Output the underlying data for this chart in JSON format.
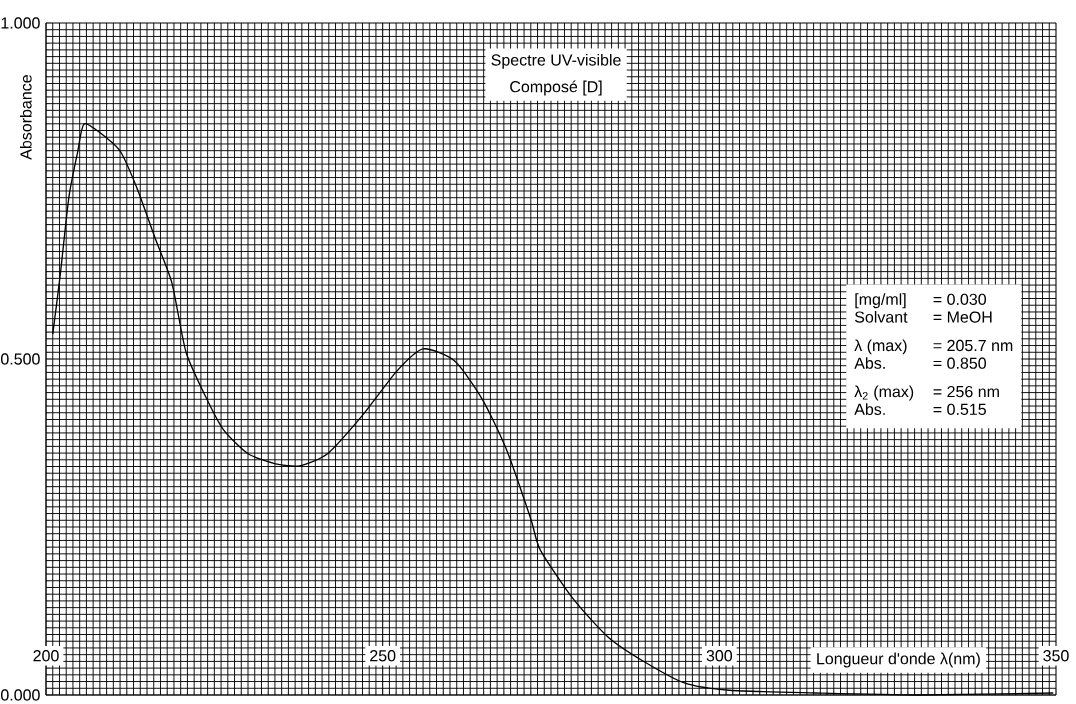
{
  "chart_data": {
    "type": "line",
    "title": "Spectre UV-visible",
    "subtitle": "Composé [D]",
    "xlabel": "Longueur d'onde λ(nm)",
    "ylabel": "Absorbance",
    "x": [
      201.0,
      202.1,
      203.4,
      204.7,
      205.7,
      209.0,
      211.1,
      213.6,
      216.2,
      218.7,
      220.8,
      223.9,
      226.4,
      230.0,
      234.1,
      237.7,
      241.8,
      246.9,
      252.1,
      256,
      260.7,
      264.8,
      268.4,
      272.0,
      273.4,
      278.3,
      283.5,
      288.6,
      294.8,
      301.5,
      314.2,
      329.5,
      349.6
    ],
    "values": [
      0.537,
      0.624,
      0.741,
      0.808,
      0.85,
      0.829,
      0.808,
      0.752,
      0.68,
      0.613,
      0.51,
      0.44,
      0.394,
      0.359,
      0.344,
      0.341,
      0.359,
      0.415,
      0.482,
      0.515,
      0.497,
      0.44,
      0.365,
      0.262,
      0.216,
      0.143,
      0.086,
      0.051,
      0.018,
      0.007,
      0.003,
      0.0,
      0.003
    ],
    "color": "#000000",
    "xlim": [
      200,
      350
    ],
    "ylim": [
      0,
      1
    ],
    "xticks": [
      200,
      250,
      300,
      350
    ],
    "yticks": [
      {
        "value": 0,
        "label": "0.000"
      },
      {
        "value": 0.5,
        "label": "0.500"
      },
      {
        "value": 1,
        "label": "1.000"
      }
    ],
    "grid": true,
    "annotations": [
      "[mg/ml]",
      "= 0.030",
      "Solvant",
      "= MeOH",
      "λ (max)",
      "= 205.7 nm",
      "Abs.",
      "= 0.850",
      "λ$_{2}$ (max)",
      "= 256 nm",
      "Abs.",
      "= 0.515"
    ]
  }
}
